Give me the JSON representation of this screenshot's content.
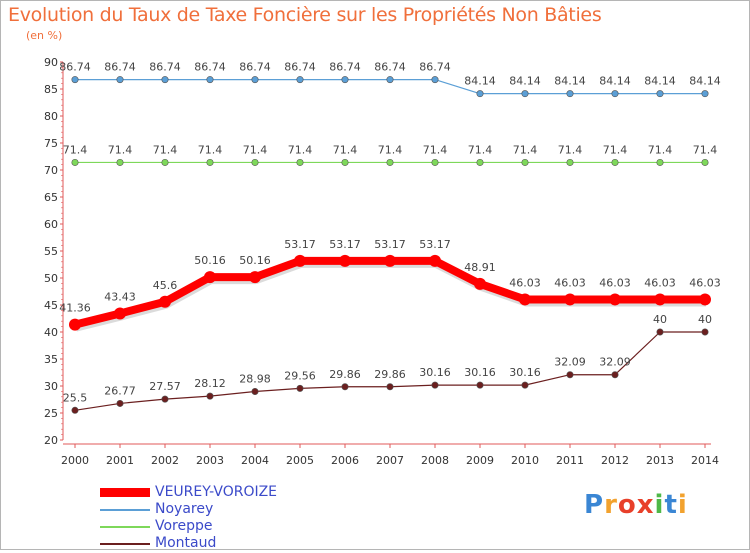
{
  "title": "Evolution du Taux de Taxe Foncière sur les Propriétés Non Bâties",
  "subtitle": "(en %)",
  "chart_data": {
    "type": "line",
    "x": [
      "2000",
      "2001",
      "2002",
      "2003",
      "2004",
      "2005",
      "2006",
      "2007",
      "2008",
      "2009",
      "2010",
      "2011",
      "2012",
      "2013",
      "2014"
    ],
    "ylim": [
      20,
      90
    ],
    "yticks": [
      20,
      25,
      30,
      35,
      40,
      45,
      50,
      55,
      60,
      65,
      70,
      75,
      80,
      85,
      90
    ],
    "grid": false,
    "legend_position": "bottom-left",
    "series": [
      {
        "name": "Noyarey",
        "color": "#5b9fd6",
        "labels": [
          "86.74",
          "86.74",
          "86.74",
          "86.74",
          "86.74",
          "86.74",
          "86.74",
          "86.74",
          "86.74",
          "84.14",
          "84.14",
          "84.14",
          "84.14",
          "84.14",
          "84.14"
        ],
        "values": [
          86.74,
          86.74,
          86.74,
          86.74,
          86.74,
          86.74,
          86.74,
          86.74,
          86.74,
          84.14,
          84.14,
          84.14,
          84.14,
          84.14,
          84.14
        ]
      },
      {
        "name": "Voreppe",
        "color": "#7ed85a",
        "labels": [
          "71.4",
          "71.4",
          "71.4",
          "71.4",
          "71.4",
          "71.4",
          "71.4",
          "71.4",
          "71.4",
          "71.4",
          "71.4",
          "71.4",
          "71.4",
          "71.4",
          "71.4"
        ],
        "values": [
          71.4,
          71.4,
          71.4,
          71.4,
          71.4,
          71.4,
          71.4,
          71.4,
          71.4,
          71.4,
          71.4,
          71.4,
          71.4,
          71.4,
          71.4
        ]
      },
      {
        "name": "Montaud",
        "color": "#6b1f1f",
        "labels": [
          "25.5",
          "26.77",
          "27.57",
          "28.12",
          "28.98",
          "29.56",
          "29.86",
          "29.86",
          "30.16",
          "30.16",
          "30.16",
          "32.09",
          "32.09",
          "40",
          "40"
        ],
        "values": [
          25.5,
          26.77,
          27.57,
          28.12,
          28.98,
          29.56,
          29.86,
          29.86,
          30.16,
          30.16,
          30.16,
          32.09,
          32.09,
          40,
          40
        ]
      },
      {
        "name": "VEUREY-VOROIZE",
        "color": "#ff0000",
        "labels": [
          "41.36",
          "43.43",
          "45.6",
          "50.16",
          "50.16",
          "53.17",
          "53.17",
          "53.17",
          "53.17",
          "48.91",
          "46.03",
          "46.03",
          "46.03",
          "46.03",
          "46.03"
        ],
        "values": [
          41.36,
          43.43,
          45.6,
          50.16,
          50.16,
          53.17,
          53.17,
          53.17,
          53.17,
          48.91,
          46.03,
          46.03,
          46.03,
          46.03,
          46.03
        ]
      }
    ]
  },
  "legend": {
    "items": [
      {
        "label": "VEUREY-VOROIZE",
        "color": "#ff0000"
      },
      {
        "label": "Noyarey",
        "color": "#5b9fd6"
      },
      {
        "label": "Voreppe",
        "color": "#7ed85a"
      },
      {
        "label": "Montaud",
        "color": "#6b1f1f"
      }
    ]
  },
  "logo": {
    "letters": [
      "P",
      "r",
      "o",
      "x",
      "i",
      "t",
      "i"
    ],
    "colors": [
      "#3a86d4",
      "#f2a22e",
      "#e8402a",
      "#e8402a",
      "#4fb848",
      "#3a86d4",
      "#f2a22e"
    ]
  }
}
